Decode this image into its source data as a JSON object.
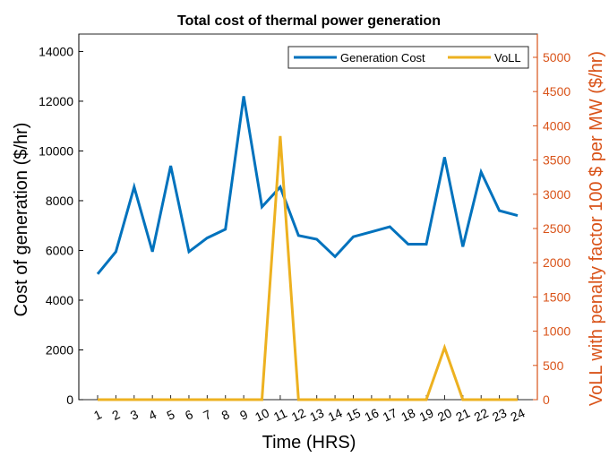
{
  "chart_data": {
    "type": "line",
    "title": "Total cost of thermal power generation",
    "xlabel": "Time (HRS)",
    "ylabel": "Cost of generation ($/hr)",
    "y2label": "VoLL with penalty factor 100 $ per MW ($/hr)",
    "categories": [
      "1",
      "2",
      "3",
      "4",
      "5",
      "6",
      "7",
      "8",
      "9",
      "10",
      "11",
      "12",
      "13",
      "14",
      "15",
      "16",
      "17",
      "18",
      "19",
      "20",
      "21",
      "22",
      "23",
      "24"
    ],
    "ylim": [
      0,
      14700
    ],
    "y2lim": [
      0,
      5340
    ],
    "yticks": [
      0,
      2000,
      4000,
      6000,
      8000,
      10000,
      12000,
      14000
    ],
    "y2ticks": [
      0,
      500,
      1000,
      1500,
      2000,
      2500,
      3000,
      3500,
      4000,
      4500,
      5000
    ],
    "legend_position": "top-right",
    "grid": false,
    "colors": {
      "left_axis": "#000000",
      "right_axis": "#d95319",
      "generation": "#0072bd",
      "voll": "#edb120"
    },
    "series": [
      {
        "name": "Generation Cost",
        "axis": "left",
        "values": [
          5050,
          5950,
          8550,
          5950,
          9400,
          5950,
          6500,
          6850,
          12200,
          7750,
          8550,
          6600,
          6450,
          5750,
          6550,
          6750,
          6950,
          6250,
          6250,
          9750,
          6150,
          9150,
          7600,
          7400
        ]
      },
      {
        "name": "VoLL",
        "axis": "right",
        "values": [
          0,
          0,
          0,
          0,
          0,
          0,
          0,
          0,
          0,
          0,
          3850,
          0,
          0,
          0,
          0,
          0,
          0,
          0,
          0,
          760,
          0,
          0,
          0,
          0
        ]
      }
    ]
  }
}
